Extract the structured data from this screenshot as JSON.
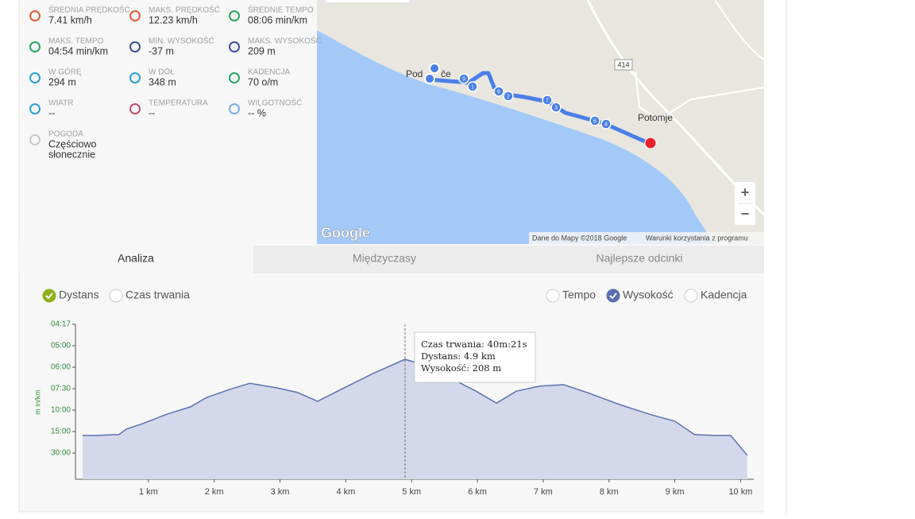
{
  "stats": [
    {
      "label": "ŚREDNIA PRĘDKOŚĆ",
      "value": "7.41 km/h"
    },
    {
      "label": "MAKS. PRĘDKOŚĆ",
      "value": "12.23 km/h"
    },
    {
      "label": "ŚREDNIE TEMPO",
      "value": "08:06 min/km"
    },
    {
      "label": "MAKS. TEMPO",
      "value": "04:54 min/km"
    },
    {
      "label": "MIN. WYSOKOŚĆ",
      "value": "-37 m"
    },
    {
      "label": "MAKS. WYSOKOŚĆ",
      "value": "209 m"
    },
    {
      "label": "W GÓRĘ",
      "value": "294 m"
    },
    {
      "label": "W DÓŁ",
      "value": "348 m"
    },
    {
      "label": "KADENCJA",
      "value": "70 o/m"
    },
    {
      "label": "WIATR",
      "value": "--"
    },
    {
      "label": "TEMPERATURA",
      "value": "--"
    },
    {
      "label": "WILGOTNOŚĆ",
      "value": "-- %"
    },
    {
      "label": "POGODA",
      "value": "Częściowo"
    }
  ],
  "weather_line2": "słonecznie",
  "map": {
    "places": [
      "Pod",
      "če",
      "Potomje"
    ],
    "road": "414",
    "markers": [
      "9",
      "1",
      "8",
      "2",
      "7",
      "3",
      "6",
      "4"
    ],
    "logo": "Google",
    "attribution": "Dane do Mapy ©2018 Google",
    "terms": "Warunki korzystania z programu",
    "zoom_in": "+",
    "zoom_out": "−"
  },
  "tabs": [
    "Analiza",
    "Międzyczasy",
    "Najlepsze odcinki"
  ],
  "options": {
    "left": [
      "Dystans",
      "Czas trwania"
    ],
    "right": [
      "Tempo",
      "Wysokość",
      "Kadencja"
    ]
  },
  "chart_data": {
    "type": "area",
    "y_axis_label": "m in/km",
    "y_tick_labels": [
      "04:17",
      "05:00",
      "06:00",
      "07:30",
      "10:00",
      "15:00",
      "30:00"
    ],
    "x": [
      0,
      0.19,
      0.55,
      0.67,
      0.92,
      1.28,
      1.64,
      1.88,
      2.24,
      2.54,
      2.96,
      3.27,
      3.57,
      3.93,
      4.41,
      4.9,
      5.14,
      5.5,
      5.98,
      6.29,
      6.59,
      6.95,
      7.31,
      7.67,
      8.16,
      8.64,
      9.0,
      9.3,
      9.6,
      9.85,
      10.1
    ],
    "values": [
      43,
      43,
      45,
      57,
      69,
      89,
      105,
      125,
      143,
      156,
      146,
      136,
      117,
      143,
      177,
      208,
      198,
      174,
      139,
      113,
      139,
      150,
      153,
      136,
      110,
      88,
      74,
      45,
      43,
      43,
      0
    ],
    "xlim": [
      0,
      10.2
    ],
    "ylim": [
      -52,
      284
    ],
    "xticks": [
      {
        "value": 1,
        "label": "1 km"
      },
      {
        "value": 2,
        "label": "2 km"
      },
      {
        "value": 3,
        "label": "3 km"
      },
      {
        "value": 4,
        "label": "4 km"
      },
      {
        "value": 5,
        "label": "5 km"
      },
      {
        "value": 6,
        "label": "6 km"
      },
      {
        "value": 7,
        "label": "7 km"
      },
      {
        "value": 8,
        "label": "8 km"
      },
      {
        "value": 9,
        "label": "9 km"
      },
      {
        "value": 10,
        "label": "10 km"
      }
    ],
    "cursor_x": 4.9,
    "tooltip": [
      "Czas trwania: 40m:21s",
      "Dystans: 4.9 km",
      "Wysokość: 208 m"
    ]
  }
}
